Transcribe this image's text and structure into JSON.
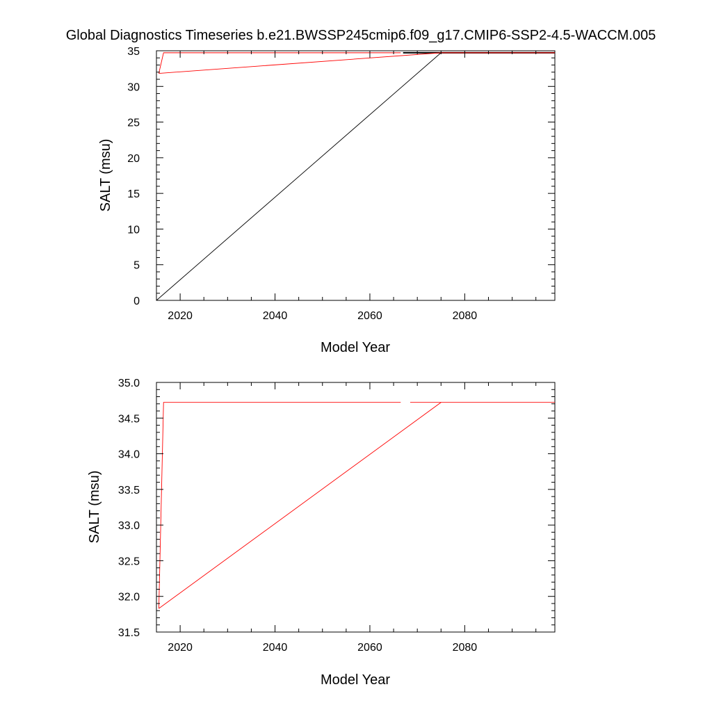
{
  "figure": {
    "title": "Global Diagnostics Timeseries b.e21.BWSSP245cmip6.f09_g17.CMIP6-SSP2-4.5-WACCM.005"
  },
  "chart_data": [
    {
      "type": "line",
      "xlabel": "Model Year",
      "ylabel": "SALT (msu)",
      "xlim": [
        2015,
        2099
      ],
      "ylim": [
        0,
        35
      ],
      "x_ticks": [
        2020,
        2040,
        2060,
        2080
      ],
      "x_minor_step": 5,
      "y_ticks": [
        0,
        5,
        10,
        15,
        20,
        25,
        30,
        35
      ],
      "y_minor_step": 1,
      "grid": false,
      "series": [
        {
          "color": "#000000",
          "x": [
            2015,
            2075
          ],
          "y": [
            0,
            34.72
          ]
        },
        {
          "color": "#000000",
          "x": [
            2067,
            2099
          ],
          "y": [
            34.72,
            34.72
          ],
          "stroke": 2
        },
        {
          "color": "#ff0000",
          "x": [
            2015.5,
            2016.5,
            2066.5
          ],
          "y": [
            31.83,
            34.72,
            34.72
          ]
        },
        {
          "color": "#ff0000",
          "x": [
            2015.5,
            2075,
            2099
          ],
          "y": [
            31.83,
            34.72,
            34.72
          ]
        }
      ]
    },
    {
      "type": "line",
      "xlabel": "Model Year",
      "ylabel": "SALT (msu)",
      "xlim": [
        2015,
        2099
      ],
      "ylim": [
        31.5,
        35.0
      ],
      "x_ticks": [
        2020,
        2040,
        2060,
        2080
      ],
      "x_minor_step": 5,
      "y_ticks": [
        "31.5",
        "32.0",
        "32.5",
        "33.0",
        "33.5",
        "34.0",
        "34.5",
        "35.0"
      ],
      "y_minor_step": 0.1,
      "grid": false,
      "series": [
        {
          "color": "#ff0000",
          "x": [
            2015.5,
            2016.5,
            2066.5
          ],
          "y": [
            31.83,
            34.72,
            34.72
          ]
        },
        {
          "color": "#ff0000",
          "x": [
            2015.5,
            2075,
            2099
          ],
          "y": [
            31.83,
            34.72,
            34.72
          ]
        },
        {
          "color": "#ff0000",
          "x": [
            2068.5,
            2075
          ],
          "y": [
            34.72,
            34.72
          ]
        }
      ]
    }
  ]
}
